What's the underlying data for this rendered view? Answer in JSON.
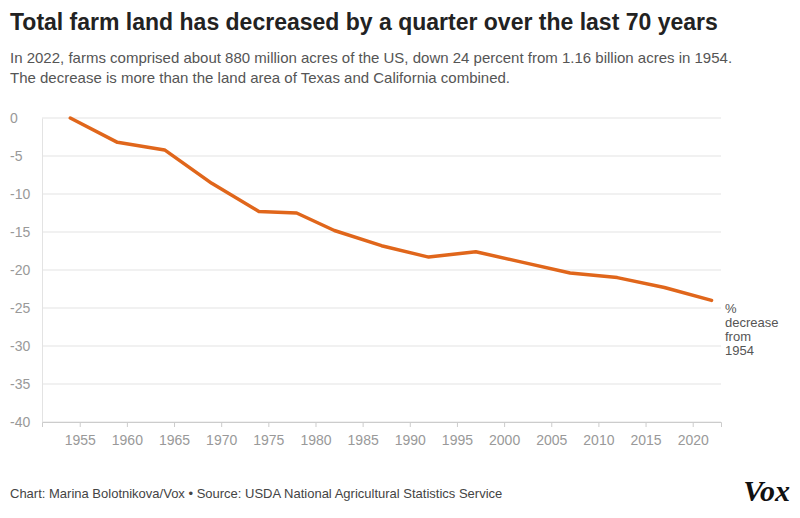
{
  "chart_data": {
    "type": "line",
    "title": "Total farm land has decreased by a quarter over the last 70 years",
    "subtitle": [
      "In 2022, farms comprised about 880 million acres of the US, down 24 percent from 1.16 billion acres in 1954.",
      "The decrease is more than the land area of Texas and California combined."
    ],
    "annotation": [
      "%",
      "decrease",
      "from",
      "1954"
    ],
    "credit": "Chart: Marina Bolotnikova/Vox • Source: USDA National Agricultural Statistics Service",
    "logo": "Vox",
    "x": [
      1954,
      1959,
      1964,
      1969,
      1974,
      1978,
      1982,
      1987,
      1992,
      1997,
      2002,
      2007,
      2012,
      2017,
      2022
    ],
    "values": [
      0,
      -3.2,
      -4.2,
      -8.6,
      -12.3,
      -12.5,
      -14.8,
      -16.8,
      -18.3,
      -17.6,
      -19.0,
      -20.4,
      -21.0,
      -22.3,
      -24.0
    ],
    "color": "#e0661b",
    "xlim": [
      1951,
      2023
    ],
    "xticks": [
      1955,
      1960,
      1965,
      1970,
      1975,
      1980,
      1985,
      1990,
      1995,
      2000,
      2005,
      2010,
      2015,
      2020
    ],
    "ylim": [
      -40,
      0
    ],
    "yticks": [
      0,
      -5,
      -10,
      -15,
      -20,
      -25,
      -30,
      -35,
      -40
    ],
    "grid": true
  }
}
